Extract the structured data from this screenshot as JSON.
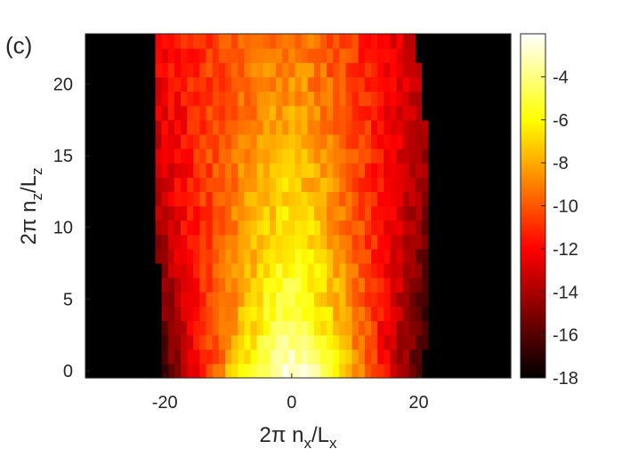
{
  "figure": {
    "panel_label": "(c)"
  },
  "chart_data": {
    "type": "heatmap",
    "panel_label": "(c)",
    "xlabel": {
      "prefix": "2π n",
      "sub": "x",
      "mid": "/L",
      "sub2": "x"
    },
    "ylabel": {
      "prefix": "2π n",
      "sub": "z",
      "mid": "/L",
      "sub2": "z"
    },
    "xlim": [
      -32.5,
      34.5
    ],
    "ylim": [
      -0.5,
      23.5
    ],
    "x_ticks": [
      -20,
      0,
      20
    ],
    "x_tick_labels": [
      "-20",
      "0",
      "20"
    ],
    "y_ticks": [
      0,
      5,
      10,
      15,
      20
    ],
    "y_tick_labels": [
      "0",
      "5",
      "10",
      "15",
      "20"
    ],
    "colorbar": {
      "range": [
        -18,
        -2
      ],
      "ticks": [
        -4,
        -6,
        -8,
        -10,
        -12,
        -14,
        -16,
        -18
      ],
      "tick_labels": [
        "-4",
        "-6",
        "-8",
        "-10",
        "-12",
        "-14",
        "-16",
        "-18"
      ],
      "colormap": "hot"
    },
    "grid": false,
    "z_description_values": {
      "background": -18,
      "peak_center_bottom": -2.2,
      "center_top": -9,
      "edge_bottom": -14.5,
      "edge_top": -12
    },
    "extent_rows": {
      "y": [
        0,
        5,
        10,
        15,
        20,
        23
      ],
      "left_edge": [
        -20,
        -20,
        -21,
        -21,
        -21,
        -21
      ],
      "right_edge": [
        21,
        21,
        21,
        21,
        20,
        19
      ]
    }
  }
}
